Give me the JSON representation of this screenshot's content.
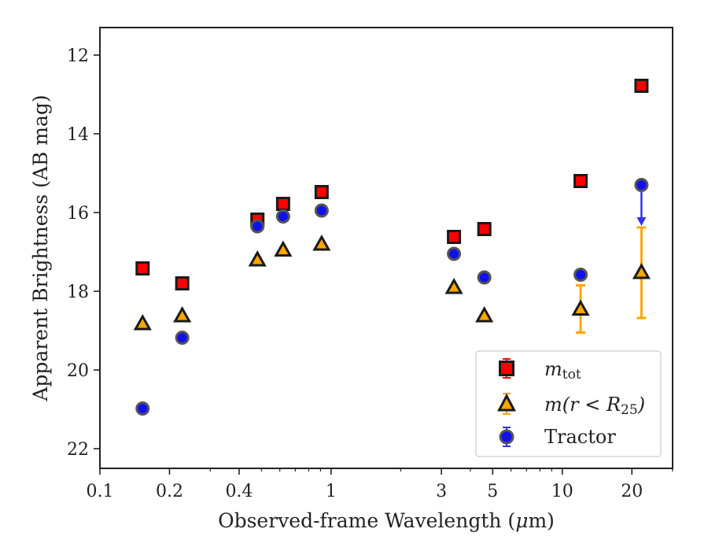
{
  "chart_data": {
    "type": "scatter",
    "xlabel_main": "Observed-frame Wavelength (",
    "xlabel_mu": "μ",
    "xlabel_tail": "m)",
    "ylabel": "Apparent Brightness (AB mag)",
    "xscale": "log",
    "xlim": [
      0.1,
      30
    ],
    "ylim": [
      22.5,
      11.3
    ],
    "y_inverted": true,
    "grid": false,
    "legend_position": "lower-right",
    "x_ticks": [
      {
        "value": 0.1,
        "label": "0.1"
      },
      {
        "value": 0.2,
        "label": "0.2"
      },
      {
        "value": 0.4,
        "label": "0.4"
      },
      {
        "value": 1,
        "label": "1"
      },
      {
        "value": 3,
        "label": "3"
      },
      {
        "value": 5,
        "label": "5"
      },
      {
        "value": 10,
        "label": "10"
      },
      {
        "value": 20,
        "label": "20"
      }
    ],
    "y_ticks": [
      {
        "value": 12,
        "label": "12"
      },
      {
        "value": 14,
        "label": "14"
      },
      {
        "value": 16,
        "label": "16"
      },
      {
        "value": 18,
        "label": "18"
      },
      {
        "value": 20,
        "label": "20"
      },
      {
        "value": 22,
        "label": "22"
      }
    ],
    "series": [
      {
        "name": "m_tot",
        "legend_main": "m",
        "legend_sub": "tot",
        "marker": "square",
        "face_color": "#ff0000",
        "edge_color": "#1a1a1a",
        "error_color": "#ff0000",
        "points": [
          {
            "x": 0.153,
            "y": 17.42
          },
          {
            "x": 0.227,
            "y": 17.8
          },
          {
            "x": 0.48,
            "y": 16.18
          },
          {
            "x": 0.62,
            "y": 15.78
          },
          {
            "x": 0.91,
            "y": 15.48
          },
          {
            "x": 3.4,
            "y": 16.62
          },
          {
            "x": 4.6,
            "y": 16.42
          },
          {
            "x": 12.0,
            "y": 15.2
          },
          {
            "x": 22.0,
            "y": 12.78
          }
        ]
      },
      {
        "name": "m(r<R25)",
        "legend_main": "m",
        "legend_mid": "(r < R",
        "legend_sub": "25",
        "legend_end": ")",
        "marker": "triangle",
        "face_color": "#ffa500",
        "edge_color": "#1a1a1a",
        "error_color": "#ffa500",
        "points": [
          {
            "x": 0.153,
            "y": 18.82
          },
          {
            "x": 0.227,
            "y": 18.62
          },
          {
            "x": 0.48,
            "y": 17.2
          },
          {
            "x": 0.62,
            "y": 16.95
          },
          {
            "x": 0.91,
            "y": 16.8
          },
          {
            "x": 3.4,
            "y": 17.9
          },
          {
            "x": 4.6,
            "y": 18.62
          },
          {
            "x": 12.0,
            "y": 18.45,
            "yerr_low": 17.85,
            "yerr_high": 19.05
          },
          {
            "x": 22.0,
            "y": 17.52,
            "yerr_low": 16.38,
            "yerr_high": 18.68
          }
        ]
      },
      {
        "name": "Tractor",
        "legend_main": "Tractor",
        "marker": "circle",
        "face_color": "#1010ee",
        "edge_color": "#555555",
        "error_color": "#3333ee",
        "points": [
          {
            "x": 0.153,
            "y": 20.98
          },
          {
            "x": 0.227,
            "y": 19.18
          },
          {
            "x": 0.48,
            "y": 16.35
          },
          {
            "x": 0.62,
            "y": 16.1
          },
          {
            "x": 0.91,
            "y": 15.95
          },
          {
            "x": 3.4,
            "y": 17.05
          },
          {
            "x": 4.6,
            "y": 17.65
          },
          {
            "x": 12.0,
            "y": 17.58
          },
          {
            "x": 22.0,
            "y": 15.3,
            "upper_limit_to": 16.3
          }
        ]
      }
    ]
  }
}
